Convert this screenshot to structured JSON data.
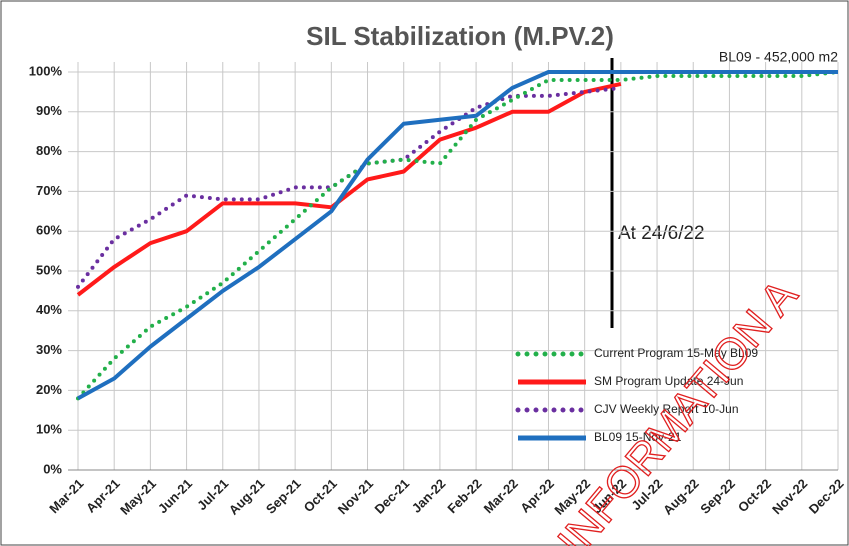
{
  "chart_data": {
    "type": "line",
    "title": "SIL Stabilization (M.PV.2)",
    "annotations": [
      "BL09 - 452,000 m2",
      "At 24/6/22"
    ],
    "watermark": "INFORMATION A",
    "categories": [
      "Mar-21",
      "Apr-21",
      "May-21",
      "Jun-21",
      "Jul-21",
      "Aug-21",
      "Sep-21",
      "Oct-21",
      "Nov-21",
      "Dec-21",
      "Jan-22",
      "Feb-22",
      "Mar-22",
      "Apr-22",
      "May-22",
      "Jun-22",
      "Jul-22",
      "Aug-22",
      "Sep-22",
      "Oct-22",
      "Nov-22",
      "Dec-22"
    ],
    "series": [
      {
        "name": "Current Program 15-May BL09",
        "color": "#22b04a",
        "style": "dotted",
        "values": [
          18,
          28,
          36,
          41,
          47,
          55,
          63,
          71,
          77,
          78,
          77,
          88,
          93,
          98,
          98,
          98,
          99,
          99,
          99,
          99,
          99,
          100
        ]
      },
      {
        "name": "SM Program Update 24-Jun",
        "color": "#ff1a1a",
        "style": "solid",
        "values": [
          44,
          51,
          57,
          60,
          67,
          67,
          67,
          66,
          73,
          75,
          83,
          86,
          90,
          90,
          95,
          97,
          null,
          null,
          null,
          null,
          null,
          null
        ]
      },
      {
        "name": "CJV Weekly Report 10-Jun",
        "color": "#6a2fa0",
        "style": "dotted",
        "values": [
          46,
          58,
          63,
          69,
          68,
          68,
          71,
          71,
          77,
          78,
          85,
          91,
          94,
          94,
          95,
          96,
          null,
          null,
          null,
          null,
          null,
          null
        ]
      },
      {
        "name": "BL09 15-Nov-21",
        "color": "#1f6fbf",
        "style": "solid",
        "values": [
          18,
          23,
          31,
          38,
          45,
          51,
          58,
          65,
          78,
          87,
          88,
          89,
          96,
          100,
          100,
          100,
          100,
          100,
          100,
          100,
          100,
          100
        ]
      }
    ],
    "ylim": [
      0,
      100
    ],
    "yticks": [
      {
        "value": 0,
        "label": "0%"
      },
      {
        "value": 10,
        "label": "10%"
      },
      {
        "value": 20,
        "label": "20%"
      },
      {
        "value": 30,
        "label": "30%"
      },
      {
        "value": 40,
        "label": "40%"
      },
      {
        "value": 50,
        "label": "50%"
      },
      {
        "value": 60,
        "label": "60%"
      },
      {
        "value": 70,
        "label": "70%"
      },
      {
        "value": 80,
        "label": "80%"
      },
      {
        "value": 90,
        "label": "90%"
      },
      {
        "value": 100,
        "label": "100%"
      }
    ],
    "grid": true,
    "legend": "lower right"
  }
}
